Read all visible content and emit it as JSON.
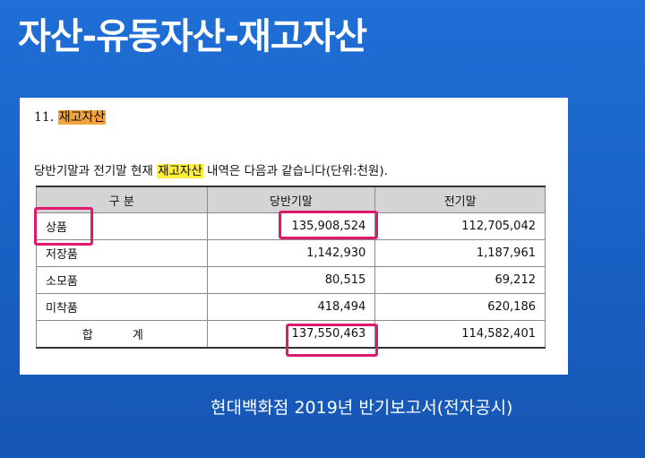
{
  "slide": {
    "title": "자산-유동자산-재고자산",
    "caption": "현대백화점 2019년 반기보고서(전자공시)"
  },
  "document": {
    "heading_number": "11.",
    "heading_text": "재고자산",
    "intro_before": "당반기말과 전기말 현재 ",
    "intro_highlight": "재고자산",
    "intro_after": " 내역은 다음과 같습니다(단위:천원).",
    "table": {
      "headers": [
        "구 분",
        "당반기말",
        "전기말"
      ],
      "rows": [
        {
          "label": "상품",
          "current": "135,908,524",
          "previous": "112,705,042"
        },
        {
          "label": "저장품",
          "current": "1,142,930",
          "previous": "1,187,961"
        },
        {
          "label": "소모품",
          "current": "80,515",
          "previous": "69,212"
        },
        {
          "label": "미착품",
          "current": "418,494",
          "previous": "620,186"
        },
        {
          "label": "합 계",
          "current": "137,550,463",
          "previous": "114,582,401"
        }
      ]
    }
  },
  "colors": {
    "background": "#1a63c8",
    "heading_highlight": "#f3a33a",
    "text_highlight": "#ffef3a",
    "annotation_box": "#e0186e"
  }
}
